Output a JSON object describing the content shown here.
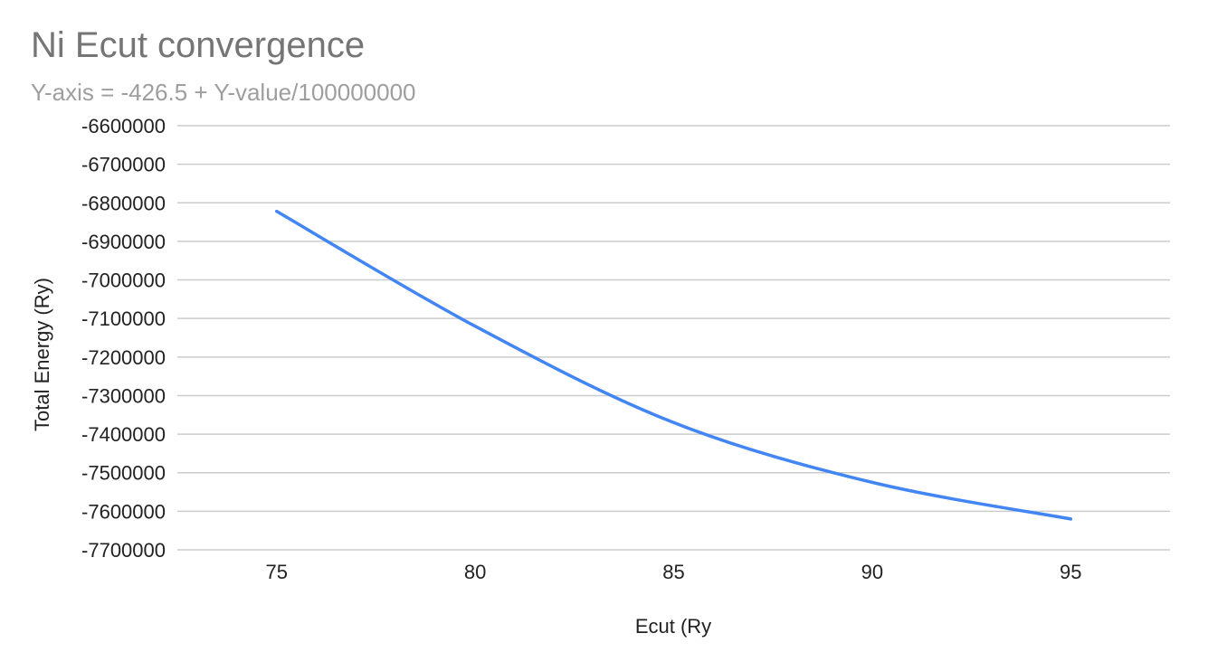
{
  "chart_data": {
    "type": "line",
    "title": "Ni Ecut convergence",
    "subtitle": "Y-axis = -426.5 + Y-value/100000000",
    "xlabel": "Ecut (Ry",
    "ylabel": "Total Energy (Ry)",
    "xlim": [
      72.5,
      97.5
    ],
    "ylim": [
      -7700000,
      -6600000
    ],
    "xticks": [
      75,
      80,
      85,
      90,
      95
    ],
    "yticks": [
      -6600000,
      -6700000,
      -6800000,
      -6900000,
      -7000000,
      -7100000,
      -7200000,
      -7300000,
      -7400000,
      -7500000,
      -7600000,
      -7700000
    ],
    "grid": true,
    "legend": "none",
    "series": [
      {
        "color": "#4285f4",
        "x": [
          75,
          80,
          85,
          90,
          95
        ],
        "values": [
          -6822000,
          -7120000,
          -7370000,
          -7525000,
          -7620000
        ]
      }
    ]
  }
}
